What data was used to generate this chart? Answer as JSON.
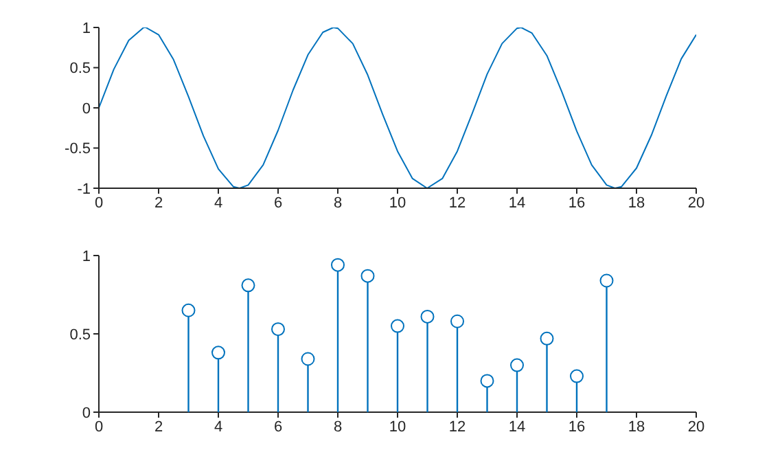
{
  "chart_data": [
    {
      "type": "line",
      "color": "#0072bd",
      "xlim": [
        0,
        20
      ],
      "xticks": [
        0,
        2,
        4,
        6,
        8,
        10,
        12,
        14,
        16,
        18,
        20
      ],
      "ylim": [
        -1,
        1
      ],
      "yticks": [
        -1,
        -0.5,
        0,
        0.5,
        1
      ],
      "x": [
        0,
        0.5,
        1,
        1.5,
        1.57,
        2,
        2.5,
        3,
        3.5,
        4,
        4.5,
        4.71,
        5,
        5.5,
        6,
        6.5,
        7,
        7.5,
        7.85,
        8,
        8.5,
        9,
        9.5,
        10,
        10.5,
        10.99,
        11.5,
        12,
        12.5,
        13,
        13.5,
        14,
        14.14,
        14.5,
        15,
        15.5,
        16,
        16.5,
        17,
        17.28,
        17.5,
        18,
        18.5,
        19,
        19.5,
        20
      ],
      "values": [
        0,
        0.48,
        0.84,
        1.0,
        1.0,
        0.91,
        0.6,
        0.14,
        -0.35,
        -0.76,
        -0.98,
        -1.0,
        -0.96,
        -0.71,
        -0.28,
        0.22,
        0.66,
        0.94,
        1.0,
        0.99,
        0.8,
        0.41,
        -0.08,
        -0.54,
        -0.88,
        -1.0,
        -0.88,
        -0.54,
        -0.07,
        0.42,
        0.8,
        0.99,
        1.0,
        0.93,
        0.65,
        0.2,
        -0.29,
        -0.71,
        -0.96,
        -1.0,
        -0.98,
        -0.75,
        -0.34,
        0.15,
        0.61,
        0.91
      ]
    },
    {
      "type": "lollipop",
      "color": "#0072bd",
      "marker": "circle",
      "xlim": [
        0,
        20
      ],
      "xticks": [
        0,
        2,
        4,
        6,
        8,
        10,
        12,
        14,
        16,
        18,
        20
      ],
      "ylim": [
        0,
        1
      ],
      "yticks": [
        0,
        0.5,
        1
      ],
      "x": [
        3,
        4,
        5,
        6,
        7,
        8,
        9,
        10,
        11,
        12,
        13,
        14,
        15,
        16,
        17
      ],
      "values": [
        0.65,
        0.38,
        0.81,
        0.53,
        0.34,
        0.94,
        0.87,
        0.55,
        0.61,
        0.58,
        0.2,
        0.3,
        0.47,
        0.23,
        0.84
      ]
    }
  ]
}
